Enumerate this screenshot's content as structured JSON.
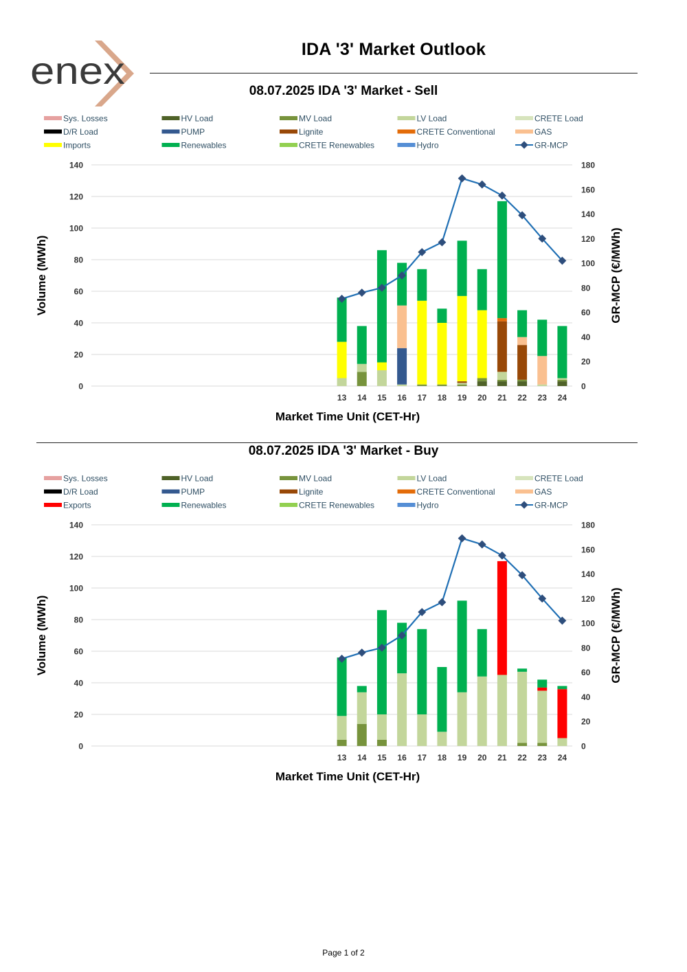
{
  "brand": {
    "logo_text": "enex",
    "accent_color": "#d4a48a",
    "text_color": "#333333"
  },
  "page": {
    "title": "IDA '3' Market Outlook",
    "footer": "Page 1 of 2"
  },
  "chart_data": [
    {
      "type": "bar",
      "stacked": true,
      "title": "08.07.2025  IDA '3' Market - Sell",
      "xlabel": "Market Time Unit (CET-Hr)",
      "ylabel": "Volume (MWh)",
      "y2label": "GR-MCP (€/MWh)",
      "ylim": [
        0,
        140
      ],
      "yticks": [
        0,
        20,
        40,
        60,
        80,
        100,
        120,
        140
      ],
      "y2lim": [
        0,
        180
      ],
      "y2ticks": [
        0,
        20,
        40,
        60,
        80,
        100,
        120,
        140,
        160,
        180
      ],
      "grid": true,
      "legend_position": "top",
      "categories": [
        "13",
        "14",
        "15",
        "16",
        "17",
        "18",
        "19",
        "20",
        "21",
        "22",
        "23",
        "24"
      ],
      "series": [
        {
          "name": "Sys. Losses",
          "color": "#e6a1a0",
          "values": [
            0,
            0,
            0,
            0,
            0,
            0,
            0,
            0,
            0,
            0,
            0,
            0
          ]
        },
        {
          "name": "HV Load",
          "color": "#4f6228",
          "values": [
            0,
            0,
            0,
            0,
            0,
            0,
            0,
            3,
            3,
            3,
            0,
            3
          ]
        },
        {
          "name": "MV Load",
          "color": "#77933c",
          "values": [
            0,
            9,
            0,
            0,
            1,
            1,
            1,
            2,
            1,
            1,
            0,
            1
          ]
        },
        {
          "name": "LV Load",
          "color": "#c3d69b",
          "values": [
            5,
            5,
            10,
            1,
            0,
            0,
            1,
            0,
            5,
            0,
            1,
            1
          ]
        },
        {
          "name": "CRETE Load",
          "color": "#d7e4bd",
          "values": [
            0,
            0,
            0,
            0,
            0,
            0,
            0,
            0,
            0,
            0,
            0,
            0
          ]
        },
        {
          "name": "D/R Load",
          "color": "#000000",
          "values": [
            0,
            0,
            0,
            0,
            0,
            0,
            0,
            0,
            0,
            0,
            0,
            0
          ]
        },
        {
          "name": "PUMP",
          "color": "#34598f",
          "values": [
            0,
            0,
            0,
            23,
            0,
            0,
            0,
            0,
            0,
            0,
            0,
            0
          ]
        },
        {
          "name": "Lignite",
          "color": "#984807",
          "values": [
            0,
            0,
            0,
            0,
            0,
            0,
            1,
            0,
            32,
            22,
            0,
            0
          ]
        },
        {
          "name": "CRETE Conventional",
          "color": "#e36c09",
          "values": [
            0,
            0,
            0,
            0,
            0,
            0,
            0,
            0,
            2,
            0,
            0,
            0
          ]
        },
        {
          "name": "GAS",
          "color": "#fac090",
          "values": [
            0,
            0,
            0,
            27,
            0,
            0,
            0,
            0,
            0,
            5,
            18,
            0
          ]
        },
        {
          "name": "Imports",
          "color": "#ffff00",
          "values": [
            23,
            0,
            5,
            0,
            53,
            39,
            54,
            43,
            0,
            0,
            0,
            0
          ]
        },
        {
          "name": "Renewables",
          "color": "#00b050",
          "values": [
            28,
            24,
            71,
            27,
            20,
            9,
            35,
            26,
            74,
            17,
            23,
            33
          ]
        },
        {
          "name": "CRETE Renewables",
          "color": "#92d050",
          "values": [
            0,
            0,
            0,
            0,
            0,
            0,
            0,
            0,
            0,
            0,
            0,
            0
          ]
        },
        {
          "name": "Hydro",
          "color": "#558ed5",
          "values": [
            0,
            0,
            0,
            0,
            0,
            0,
            0,
            0,
            0,
            0,
            0,
            0
          ]
        }
      ],
      "line_series": {
        "name": "GR-MCP",
        "color": "#1f6fb4",
        "marker_color": "#2e4e7c",
        "axis": "secondary",
        "values": [
          71,
          76,
          80,
          90,
          109,
          117,
          169,
          164,
          155,
          139,
          120,
          102
        ]
      }
    },
    {
      "type": "bar",
      "stacked": true,
      "title": "08.07.2025  IDA '3' Market - Buy",
      "xlabel": "Market Time Unit (CET-Hr)",
      "ylabel": "Volume (MWh)",
      "y2label": "GR-MCP (€/MWh)",
      "ylim": [
        0,
        140
      ],
      "yticks": [
        0,
        20,
        40,
        60,
        80,
        100,
        120,
        140
      ],
      "y2lim": [
        0,
        180
      ],
      "y2ticks": [
        0,
        20,
        40,
        60,
        80,
        100,
        120,
        140,
        160,
        180
      ],
      "grid": true,
      "legend_position": "top",
      "categories": [
        "13",
        "14",
        "15",
        "16",
        "17",
        "18",
        "19",
        "20",
        "21",
        "22",
        "23",
        "24"
      ],
      "series": [
        {
          "name": "Sys. Losses",
          "color": "#e6a1a0",
          "values": [
            0,
            0,
            0,
            0,
            0,
            0,
            0,
            0,
            0,
            0,
            0,
            0
          ]
        },
        {
          "name": "HV Load",
          "color": "#4f6228",
          "values": [
            0,
            0,
            0,
            0,
            0,
            0,
            0,
            0,
            0,
            0,
            0,
            0
          ]
        },
        {
          "name": "MV Load",
          "color": "#77933c",
          "values": [
            4,
            14,
            4,
            0,
            0,
            0,
            0,
            0,
            0,
            2,
            2,
            0
          ]
        },
        {
          "name": "LV Load",
          "color": "#c3d69b",
          "values": [
            15,
            20,
            16,
            46,
            20,
            9,
            34,
            44,
            45,
            45,
            33,
            5
          ]
        },
        {
          "name": "CRETE Load",
          "color": "#d7e4bd",
          "values": [
            0,
            0,
            0,
            0,
            0,
            0,
            0,
            0,
            0,
            0,
            0,
            0
          ]
        },
        {
          "name": "D/R Load",
          "color": "#000000",
          "values": [
            0,
            0,
            0,
            0,
            0,
            0,
            0,
            0,
            0,
            0,
            0,
            0
          ]
        },
        {
          "name": "PUMP",
          "color": "#34598f",
          "values": [
            0,
            0,
            0,
            0,
            0,
            0,
            0,
            0,
            0,
            0,
            0,
            0
          ]
        },
        {
          "name": "Lignite",
          "color": "#984807",
          "values": [
            0,
            0,
            0,
            0,
            0,
            0,
            0,
            0,
            0,
            0,
            0,
            0
          ]
        },
        {
          "name": "CRETE Conventional",
          "color": "#e36c09",
          "values": [
            0,
            0,
            0,
            0,
            0,
            0,
            0,
            0,
            0,
            0,
            0,
            0
          ]
        },
        {
          "name": "GAS",
          "color": "#fac090",
          "values": [
            0,
            0,
            0,
            0,
            0,
            0,
            0,
            0,
            0,
            0,
            0,
            0
          ]
        },
        {
          "name": "Exports",
          "color": "#ff0000",
          "values": [
            0,
            0,
            0,
            0,
            0,
            0,
            0,
            0,
            72,
            0,
            2,
            31
          ]
        },
        {
          "name": "Renewables",
          "color": "#00b050",
          "values": [
            37,
            4,
            66,
            32,
            54,
            41,
            58,
            30,
            0,
            2,
            5,
            2
          ]
        },
        {
          "name": "CRETE Renewables",
          "color": "#92d050",
          "values": [
            0,
            0,
            0,
            0,
            0,
            0,
            0,
            0,
            0,
            0,
            0,
            0
          ]
        },
        {
          "name": "Hydro",
          "color": "#558ed5",
          "values": [
            0,
            0,
            0,
            0,
            0,
            0,
            0,
            0,
            0,
            0,
            0,
            0
          ]
        }
      ],
      "line_series": {
        "name": "GR-MCP",
        "color": "#1f6fb4",
        "marker_color": "#2e4e7c",
        "axis": "secondary",
        "values": [
          71,
          76,
          80,
          90,
          109,
          117,
          169,
          164,
          155,
          139,
          120,
          102
        ]
      }
    }
  ]
}
